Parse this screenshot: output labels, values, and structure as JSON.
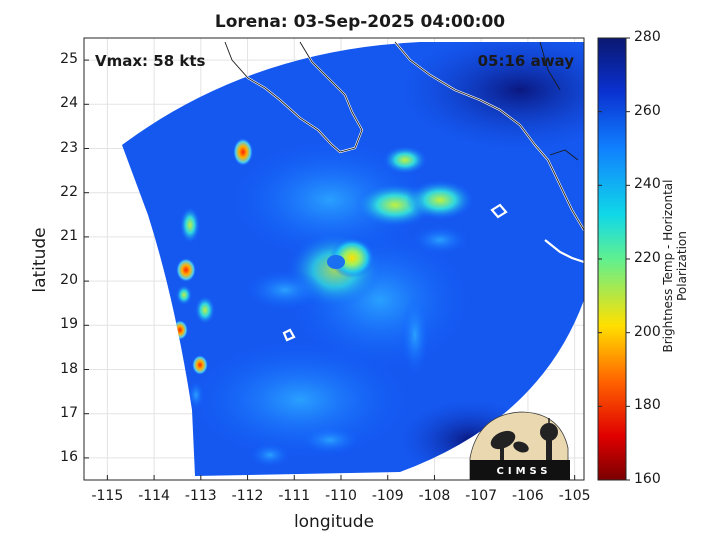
{
  "title": "Lorena: 03-Sep-2025 04:00:00",
  "vmax_label": "Vmax: 58 kts",
  "time_away": "05:16 away",
  "xlabel": "longitude",
  "ylabel": "latitude",
  "colorbar_label": "Brightness Temp - Horizontal Polarization",
  "logo_text": "CIMSS",
  "colors": {
    "cold": "#8b0000",
    "red": "#ff2000",
    "yellow": "#ffe000",
    "cyan": "#10d8e8",
    "mid_blue": "#1060ff",
    "warm": "#0a1880"
  },
  "chart_data": {
    "type": "heatmap",
    "xlim": [
      -115.5,
      -104.8
    ],
    "ylim": [
      15.5,
      25.5
    ],
    "xticks": [
      "-115",
      "-114",
      "-113",
      "-112",
      "-111",
      "-110",
      "-109",
      "-108",
      "-107",
      "-106",
      "-105"
    ],
    "yticks": [
      "16",
      "17",
      "18",
      "19",
      "20",
      "21",
      "22",
      "23",
      "24",
      "25"
    ],
    "colorbar": {
      "min": 160,
      "max": 280,
      "ticks": [
        "160",
        "180",
        "200",
        "220",
        "240",
        "260",
        "280"
      ]
    },
    "grid": true,
    "storm_center": {
      "lon": -109.7,
      "lat": 20.5
    }
  }
}
